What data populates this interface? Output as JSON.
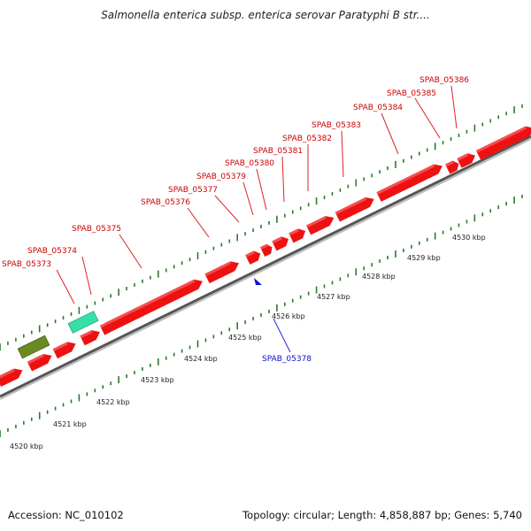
{
  "title": "Salmonella enterica subsp. enterica serovar Paratyphi B str....",
  "footer": {
    "accession": "Accession: NC_010102",
    "topology": "Topology: circular; Length: 4,858,887 bp; Genes: 5,740"
  },
  "colors": {
    "forward_gene": "#ee1111",
    "reverse_gene": "#1010cc",
    "backbone": "#888888",
    "tick": "#2a7a2a",
    "feature_olive": "#6b8a22",
    "feature_teal": "#33e0a8"
  },
  "scale": {
    "ticks": [
      {
        "label": "4520 kbp"
      },
      {
        "label": "4521 kbp"
      },
      {
        "label": "4522 kbp"
      },
      {
        "label": "4523 kbp"
      },
      {
        "label": "4524 kbp"
      },
      {
        "label": "4525 kbp"
      },
      {
        "label": "4526 kbp"
      },
      {
        "label": "4527 kbp"
      },
      {
        "label": "4528 kbp"
      },
      {
        "label": "4529 kbp"
      },
      {
        "label": "4530 kbp"
      }
    ]
  },
  "genes_forward": [
    {
      "label": "SPAB_05373"
    },
    {
      "label": "SPAB_05374"
    },
    {
      "label": "SPAB_05375"
    },
    {
      "label": "SPAB_05376"
    },
    {
      "label": "SPAB_05377"
    },
    {
      "label": "SPAB_05379"
    },
    {
      "label": "SPAB_05380"
    },
    {
      "label": "SPAB_05381"
    },
    {
      "label": "SPAB_05382"
    },
    {
      "label": "SPAB_05383"
    },
    {
      "label": "SPAB_05384"
    },
    {
      "label": "SPAB_05385"
    },
    {
      "label": "SPAB_05386"
    }
  ],
  "genes_reverse": [
    {
      "label": "SPAB_05378"
    }
  ]
}
